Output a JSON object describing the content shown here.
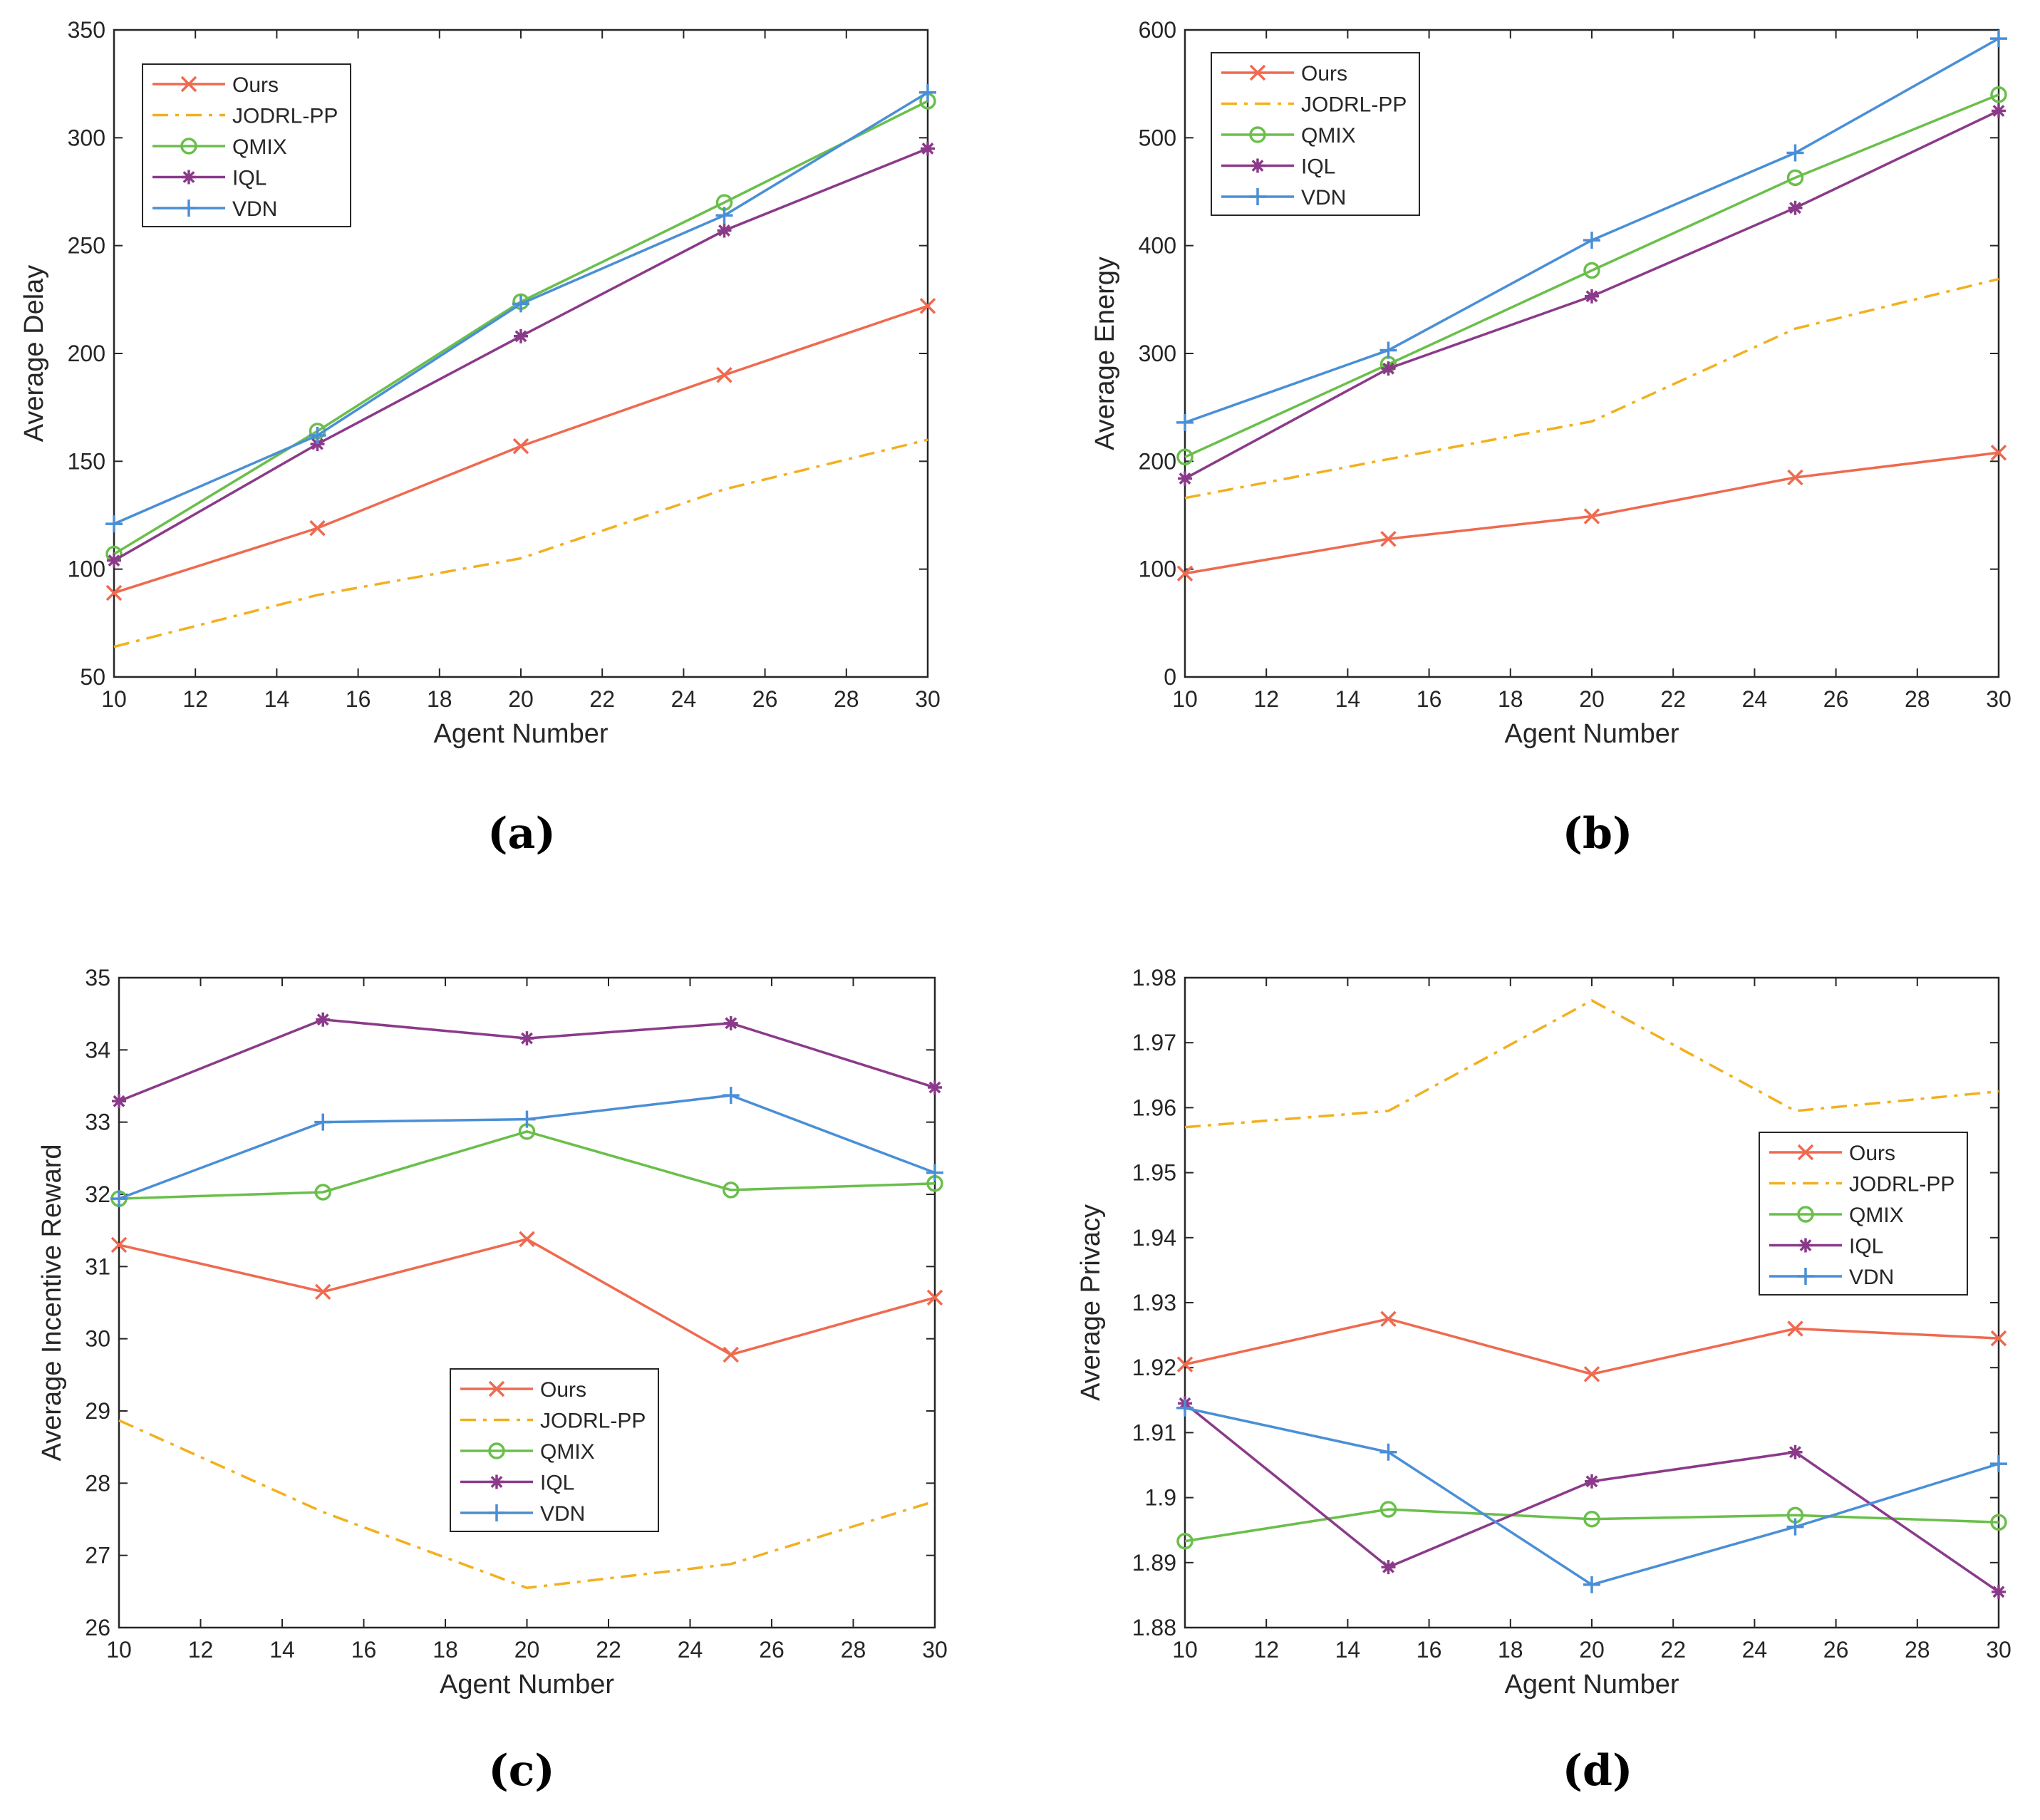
{
  "series_styles": [
    {
      "name": "Ours",
      "color": "#ee6a50",
      "marker": "x",
      "dash": ""
    },
    {
      "name": "JODRL-PP",
      "color": "#f2b01e",
      "marker": "none",
      "dash": "22,10,5,10"
    },
    {
      "name": "QMIX",
      "color": "#6abf4b",
      "marker": "o",
      "dash": ""
    },
    {
      "name": "IQL",
      "color": "#8b3a8a",
      "marker": "*",
      "dash": ""
    },
    {
      "name": "VDN",
      "color": "#4a8fd6",
      "marker": "+",
      "dash": ""
    }
  ],
  "chart_data": [
    {
      "id": "a",
      "type": "line",
      "caption": "(a)",
      "xlabel": "Agent Number",
      "ylabel": "Average Delay",
      "x": [
        10,
        15,
        20,
        25,
        30
      ],
      "xlim": [
        10,
        30
      ],
      "xticks": [
        "10",
        "12",
        "14",
        "16",
        "18",
        "20",
        "22",
        "24",
        "26",
        "28",
        "30"
      ],
      "ylim": [
        50,
        350
      ],
      "yticks": [
        "50",
        "100",
        "150",
        "200",
        "250",
        "300",
        "350"
      ],
      "legend": "top-left",
      "series": [
        {
          "name": "Ours",
          "values": [
            89,
            119,
            157,
            190,
            222
          ]
        },
        {
          "name": "JODRL-PP",
          "values": [
            64,
            88,
            105,
            137,
            160
          ]
        },
        {
          "name": "QMIX",
          "values": [
            107,
            164,
            224,
            270,
            317
          ]
        },
        {
          "name": "IQL",
          "values": [
            104,
            158,
            208,
            257,
            295
          ]
        },
        {
          "name": "VDN",
          "values": [
            121,
            162,
            223,
            264,
            321
          ]
        }
      ]
    },
    {
      "id": "b",
      "type": "line",
      "caption": "(b)",
      "xlabel": "Agent Number",
      "ylabel": "Average Energy",
      "x": [
        10,
        15,
        20,
        25,
        30
      ],
      "xlim": [
        10,
        30
      ],
      "xticks": [
        "10",
        "12",
        "14",
        "16",
        "18",
        "20",
        "22",
        "24",
        "26",
        "28",
        "30"
      ],
      "ylim": [
        0,
        600
      ],
      "yticks": [
        "0",
        "100",
        "200",
        "300",
        "400",
        "500",
        "600"
      ],
      "legend": "top-left",
      "series": [
        {
          "name": "Ours",
          "values": [
            96,
            128,
            149,
            185,
            208
          ]
        },
        {
          "name": "JODRL-PP",
          "values": [
            166,
            202,
            237,
            323,
            369
          ]
        },
        {
          "name": "QMIX",
          "values": [
            204,
            290,
            377,
            463,
            540
          ]
        },
        {
          "name": "IQL",
          "values": [
            184,
            286,
            353,
            435,
            525
          ]
        },
        {
          "name": "VDN",
          "values": [
            236,
            303,
            405,
            486,
            592
          ]
        }
      ]
    },
    {
      "id": "c",
      "type": "line",
      "caption": "(c)",
      "xlabel": "Agent Number",
      "ylabel": "Average Incentive Reward",
      "x": [
        10,
        15,
        20,
        25,
        30
      ],
      "xlim": [
        10,
        30
      ],
      "xticks": [
        "10",
        "12",
        "14",
        "16",
        "18",
        "20",
        "22",
        "24",
        "26",
        "28",
        "30"
      ],
      "ylim": [
        26,
        35
      ],
      "yticks": [
        "26",
        "27",
        "28",
        "29",
        "30",
        "31",
        "32",
        "33",
        "34",
        "35"
      ],
      "legend": "bottom-center",
      "series": [
        {
          "name": "Ours",
          "values": [
            31.3,
            30.65,
            31.38,
            29.78,
            30.57
          ]
        },
        {
          "name": "JODRL-PP",
          "values": [
            28.87,
            27.6,
            26.55,
            26.88,
            27.75
          ]
        },
        {
          "name": "QMIX",
          "values": [
            31.94,
            32.03,
            32.87,
            32.06,
            32.15
          ]
        },
        {
          "name": "IQL",
          "values": [
            33.29,
            34.42,
            34.16,
            34.37,
            33.48
          ]
        },
        {
          "name": "VDN",
          "values": [
            31.94,
            33.0,
            33.04,
            33.37,
            32.3
          ]
        }
      ]
    },
    {
      "id": "d",
      "type": "line",
      "caption": "(d)",
      "xlabel": "Agent Number",
      "ylabel": "Average Privacy",
      "x": [
        10,
        15,
        20,
        25,
        30
      ],
      "xlim": [
        10,
        30
      ],
      "xticks": [
        "10",
        "12",
        "14",
        "16",
        "18",
        "20",
        "22",
        "24",
        "26",
        "28",
        "30"
      ],
      "ylim": [
        1.88,
        1.98
      ],
      "yticks": [
        "1.88",
        "1.89",
        "1.9",
        "1.91",
        "1.92",
        "1.93",
        "1.94",
        "1.95",
        "1.96",
        "1.97",
        "1.98"
      ],
      "legend": "top-right",
      "series": [
        {
          "name": "Ours",
          "values": [
            1.9205,
            1.9275,
            1.919,
            1.926,
            1.9245
          ]
        },
        {
          "name": "JODRL-PP",
          "values": [
            1.957,
            1.9595,
            1.9765,
            1.9595,
            1.9625
          ]
        },
        {
          "name": "QMIX",
          "values": [
            1.8933,
            1.8982,
            1.8967,
            1.8973,
            1.8962
          ]
        },
        {
          "name": "IQL",
          "values": [
            1.9145,
            1.8893,
            1.9025,
            1.907,
            1.8855
          ]
        },
        {
          "name": "VDN",
          "values": [
            1.9138,
            1.907,
            1.8866,
            1.8955,
            1.9052
          ]
        }
      ]
    }
  ]
}
